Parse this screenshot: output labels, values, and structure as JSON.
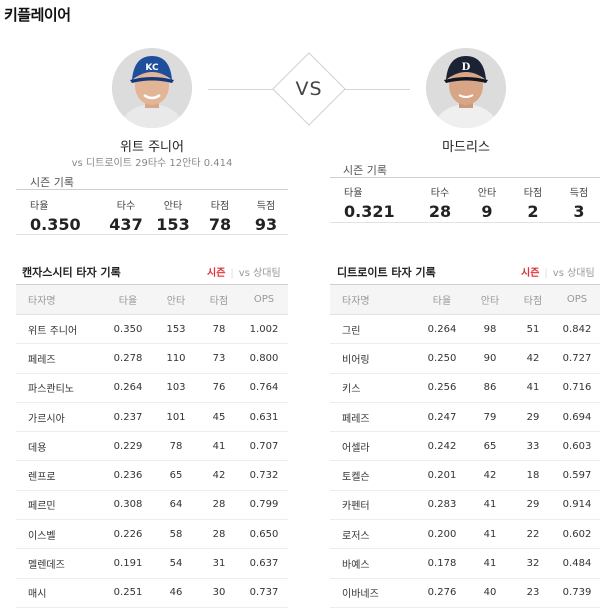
{
  "page_title": "키플레이어",
  "vs_label": "VS",
  "left_player": {
    "name": "위트 주니어",
    "matchup": "vs 디트로이트 29타수 12안타 0.414",
    "season_label": "시즌 기록",
    "stats": [
      {
        "label": "타율",
        "value": "0.350"
      },
      {
        "label": "타수",
        "value": "437"
      },
      {
        "label": "안타",
        "value": "153"
      },
      {
        "label": "타점",
        "value": "78"
      },
      {
        "label": "득점",
        "value": "93"
      }
    ]
  },
  "right_player": {
    "name": "마드리스",
    "season_label": "시즌 기록",
    "stats": [
      {
        "label": "타율",
        "value": "0.321"
      },
      {
        "label": "타수",
        "value": "28"
      },
      {
        "label": "안타",
        "value": "9"
      },
      {
        "label": "타점",
        "value": "2"
      },
      {
        "label": "득점",
        "value": "3"
      }
    ]
  },
  "tables": [
    {
      "title": "캔자스시티 타자 기록",
      "tab_active": "시즌",
      "tab_inactive": "vs 상대팀",
      "headers": [
        "타자명",
        "타율",
        "안타",
        "타점",
        "OPS"
      ],
      "rows": [
        [
          "위트 주니어",
          "0.350",
          "153",
          "78",
          "1.002"
        ],
        [
          "페레즈",
          "0.278",
          "110",
          "73",
          "0.800"
        ],
        [
          "파스콴티노",
          "0.264",
          "103",
          "76",
          "0.764"
        ],
        [
          "가르시아",
          "0.237",
          "101",
          "45",
          "0.631"
        ],
        [
          "데용",
          "0.229",
          "78",
          "41",
          "0.707"
        ],
        [
          "렌프로",
          "0.236",
          "65",
          "42",
          "0.732"
        ],
        [
          "페르민",
          "0.308",
          "64",
          "28",
          "0.799"
        ],
        [
          "이스벨",
          "0.226",
          "58",
          "28",
          "0.650"
        ],
        [
          "멜렌데즈",
          "0.191",
          "54",
          "31",
          "0.637"
        ],
        [
          "매시",
          "0.251",
          "46",
          "30",
          "0.737"
        ]
      ]
    },
    {
      "title": "디트로이트 타자 기록",
      "tab_active": "시즌",
      "tab_inactive": "vs 상대팀",
      "headers": [
        "타자명",
        "타율",
        "안타",
        "타점",
        "OPS"
      ],
      "rows": [
        [
          "그린",
          "0.264",
          "98",
          "51",
          "0.842"
        ],
        [
          "비어링",
          "0.250",
          "90",
          "42",
          "0.727"
        ],
        [
          "키스",
          "0.256",
          "86",
          "41",
          "0.716"
        ],
        [
          "페레즈",
          "0.247",
          "79",
          "29",
          "0.694"
        ],
        [
          "어셀라",
          "0.242",
          "65",
          "33",
          "0.603"
        ],
        [
          "토켈슨",
          "0.201",
          "42",
          "18",
          "0.597"
        ],
        [
          "카펜터",
          "0.283",
          "41",
          "29",
          "0.914"
        ],
        [
          "로저스",
          "0.200",
          "41",
          "22",
          "0.602"
        ],
        [
          "바예스",
          "0.178",
          "41",
          "32",
          "0.484"
        ],
        [
          "이바네즈",
          "0.276",
          "40",
          "23",
          "0.739"
        ]
      ]
    }
  ]
}
